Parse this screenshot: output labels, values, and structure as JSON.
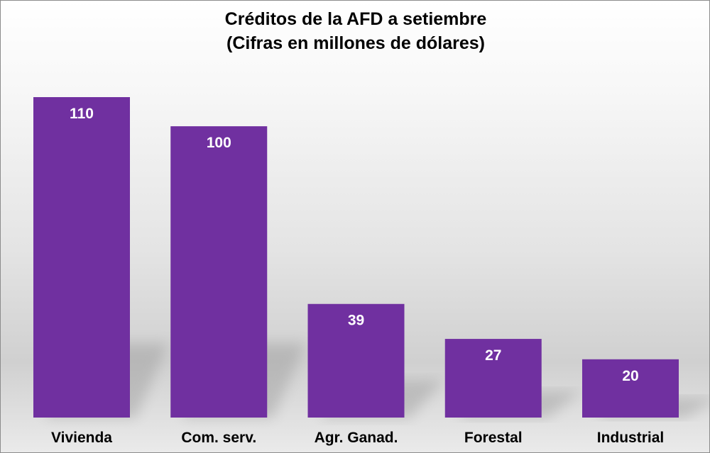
{
  "chart_data": {
    "type": "bar",
    "title": "Créditos de la AFD a setiembre",
    "subtitle": "(Cifras en millones de dólares)",
    "categories": [
      "Vivienda",
      "Com. serv.",
      "Agr. Ganad.",
      "Forestal",
      "Industrial"
    ],
    "values": [
      110,
      100,
      39,
      27,
      20
    ],
    "xlabel": "",
    "ylabel": "",
    "ylim": [
      0,
      110
    ],
    "grid": false,
    "data_labels": true
  },
  "colors": {
    "bar": "#7030a0",
    "bar_label": "#ffffff",
    "category_label": "#000000"
  }
}
